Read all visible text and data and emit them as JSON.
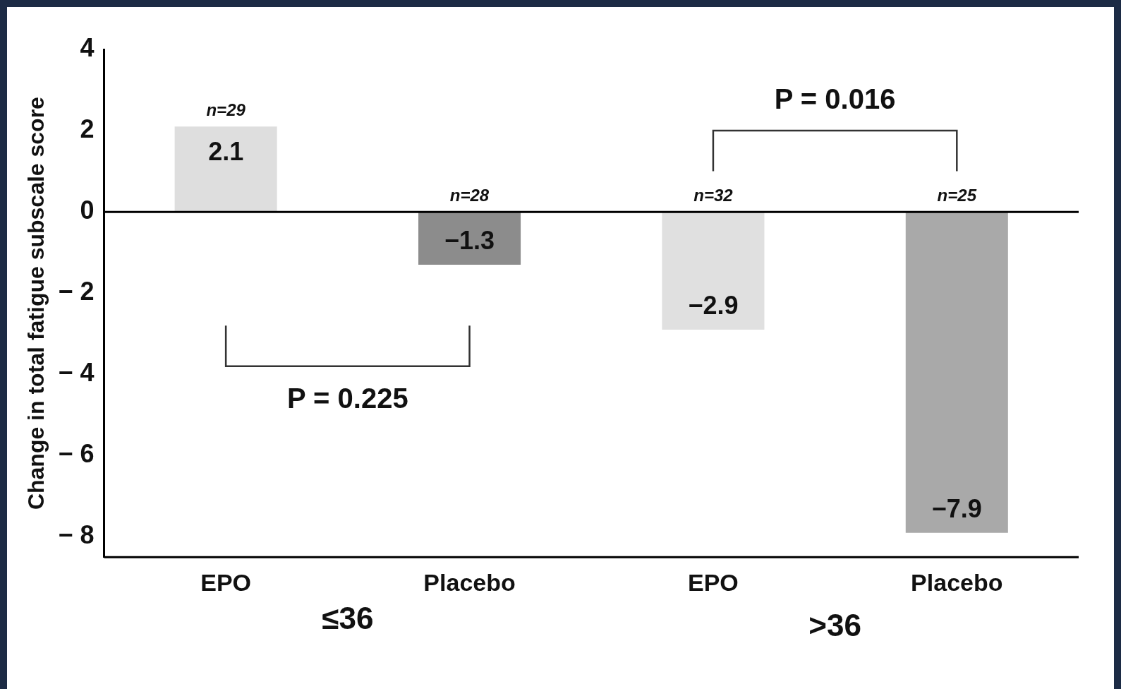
{
  "chart_data": {
    "type": "bar",
    "ylabel": "Change in total fatigue subscale score",
    "categories": [
      "EPO",
      "Placebo",
      "EPO",
      "Placebo"
    ],
    "values": [
      2.1,
      -1.3,
      -2.9,
      -7.9
    ],
    "value_labels": [
      "2.1",
      "−1.3",
      "−2.9",
      "−7.9"
    ],
    "colors": [
      "#dedede",
      "#8c8c8c",
      "#e0e0e0",
      "#a9a9a9"
    ],
    "ylim": [
      -8.5,
      4
    ],
    "yticks": [
      4,
      2,
      0,
      {
        "value": -2,
        "label": "− 2"
      },
      {
        "value": -4,
        "label": "− 4"
      },
      {
        "value": -6,
        "label": "− 6"
      },
      {
        "value": -8,
        "label": "− 8"
      }
    ],
    "legend": false,
    "annotations": [
      "n=29",
      "n=28",
      "n=32",
      "n=25",
      "P = 0.225",
      "P = 0.016",
      "≤36",
      ">36"
    ]
  }
}
